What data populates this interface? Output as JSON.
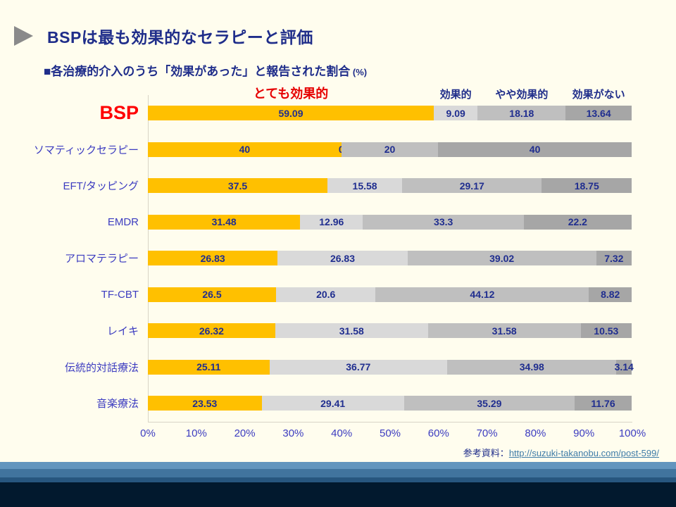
{
  "header": {
    "title": "BSPは最も効果的なセラピーと評価",
    "subtitle": "■各治療的介入のうち「効果があった」と報告された割合",
    "subtitle_suffix": " (%)"
  },
  "chart_data": {
    "type": "bar",
    "stacked": true,
    "orientation": "horizontal",
    "highlight_index": 0,
    "categories": [
      "BSP",
      "ソマティックセラピー",
      "EFT/タッピング",
      "EMDR",
      "アロマテラピー",
      "TF-CBT",
      "レイキ",
      "伝統的対話療法",
      "音楽療法"
    ],
    "series": [
      {
        "name": "とても効果的",
        "color": "#FFC000",
        "values": [
          59.09,
          40,
          37.5,
          31.48,
          26.83,
          26.5,
          26.32,
          25.11,
          23.53
        ]
      },
      {
        "name": "効果的",
        "color": "#D9D9D9",
        "values": [
          9.09,
          0,
          15.58,
          12.96,
          26.83,
          20.6,
          31.58,
          36.77,
          29.41
        ]
      },
      {
        "name": "やや効果的",
        "color": "#BFBFBF",
        "values": [
          18.18,
          20,
          29.17,
          33.3,
          39.02,
          44.12,
          31.58,
          34.98,
          35.29
        ]
      },
      {
        "name": "効果がない",
        "color": "#A6A6A6",
        "values": [
          13.64,
          40,
          18.75,
          22.2,
          7.32,
          8.82,
          10.53,
          3.14,
          11.76
        ]
      }
    ],
    "x_ticks": [
      "0%",
      "10%",
      "20%",
      "30%",
      "40%",
      "50%",
      "60%",
      "70%",
      "80%",
      "90%",
      "100%"
    ],
    "xlim": [
      0,
      100
    ],
    "value_label_color": "#202E8F",
    "header_red_color": "#E60000"
  },
  "footer": {
    "label": "参考資料：",
    "link": "http://suzuki-takanobu.com/post-599/"
  }
}
